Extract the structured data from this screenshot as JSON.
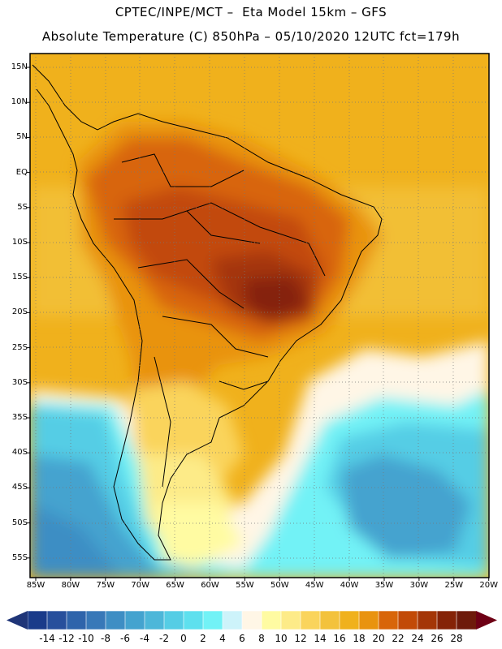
{
  "header": {
    "line1": "CPTEC/INPE/MCT –  Eta Model 15km – GFS",
    "line2": "Absolute Temperature (C) 850hPa – 05/10/2020 12UTC fct=179h"
  },
  "lat_labels": [
    "15N",
    "10N",
    "5N",
    "EQ",
    "5S",
    "10S",
    "15S",
    "20S",
    "25S",
    "30S",
    "35S",
    "40S",
    "45S",
    "50S",
    "55S"
  ],
  "lon_labels": [
    "85W",
    "80W",
    "75W",
    "70W",
    "65W",
    "60W",
    "55W",
    "50W",
    "45W",
    "40W",
    "35W",
    "30W",
    "25W",
    "20W"
  ],
  "colorbar": {
    "labels": [
      "-14",
      "-12",
      "-10",
      "-8",
      "-6",
      "-4",
      "-2",
      "0",
      "2",
      "4",
      "6",
      "8",
      "10",
      "12",
      "14",
      "16",
      "18",
      "20",
      "22",
      "24",
      "26",
      "28"
    ],
    "colors": [
      "#1a3b8a",
      "#274f9c",
      "#2f64ab",
      "#3878b8",
      "#3e8ec4",
      "#44a3cf",
      "#4db7d9",
      "#55cde5",
      "#5ee0ee",
      "#72f2f6",
      "#cdf3fa",
      "#fff6e6",
      "#fffba2",
      "#fdeb88",
      "#fad45c",
      "#f3c23c",
      "#f0b11c",
      "#e9930f",
      "#d86509",
      "#c24a07",
      "#a43607",
      "#852307",
      "#6e1a0a"
    ],
    "left_arrow_color": "#1f3578",
    "right_arrow_color": "#6e0015"
  }
}
